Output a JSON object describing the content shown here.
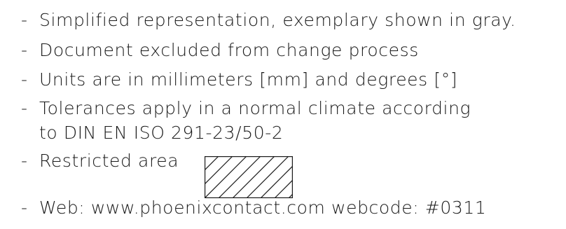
{
  "notes": {
    "line1": "Simplified representation, exemplary shown in gray.",
    "line2": "Document excluded from change process",
    "line3": "Units are in millimeters [mm] and degrees [°]",
    "line4a": "Tolerances apply in a normal climate according",
    "line4b": "to DIN EN ISO 291-23/50-2",
    "line5": "Restricted area",
    "line6": "Web: www.phoenixcontact.com webcode: #0311",
    "dash": "-"
  },
  "restricted_area_icon": "hatched-rectangle-icon"
}
